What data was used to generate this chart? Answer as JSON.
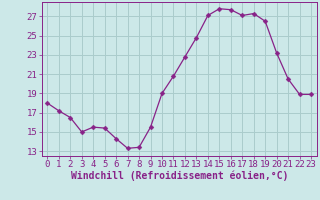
{
  "x": [
    0,
    1,
    2,
    3,
    4,
    5,
    6,
    7,
    8,
    9,
    10,
    11,
    12,
    13,
    14,
    15,
    16,
    17,
    18,
    19,
    20,
    21,
    22,
    23
  ],
  "y": [
    18.0,
    17.2,
    16.5,
    15.0,
    15.5,
    15.4,
    14.3,
    13.3,
    13.4,
    15.5,
    19.0,
    20.8,
    22.8,
    24.8,
    27.1,
    27.8,
    27.7,
    27.1,
    27.3,
    26.5,
    23.2,
    20.5,
    18.9,
    18.9
  ],
  "line_color": "#882288",
  "marker": "D",
  "marker_size": 2.5,
  "bg_color": "#cce8e8",
  "grid_color": "#aacccc",
  "xlabel": "Windchill (Refroidissement éolien,°C)",
  "xlim": [
    -0.5,
    23.5
  ],
  "ylim": [
    12.5,
    28.5
  ],
  "yticks": [
    13,
    15,
    17,
    19,
    21,
    23,
    25,
    27
  ],
  "xticks": [
    0,
    1,
    2,
    3,
    4,
    5,
    6,
    7,
    8,
    9,
    10,
    11,
    12,
    13,
    14,
    15,
    16,
    17,
    18,
    19,
    20,
    21,
    22,
    23
  ],
  "tick_color": "#882288",
  "label_color": "#882288",
  "font_size": 6.5,
  "xlabel_font_size": 7.0
}
